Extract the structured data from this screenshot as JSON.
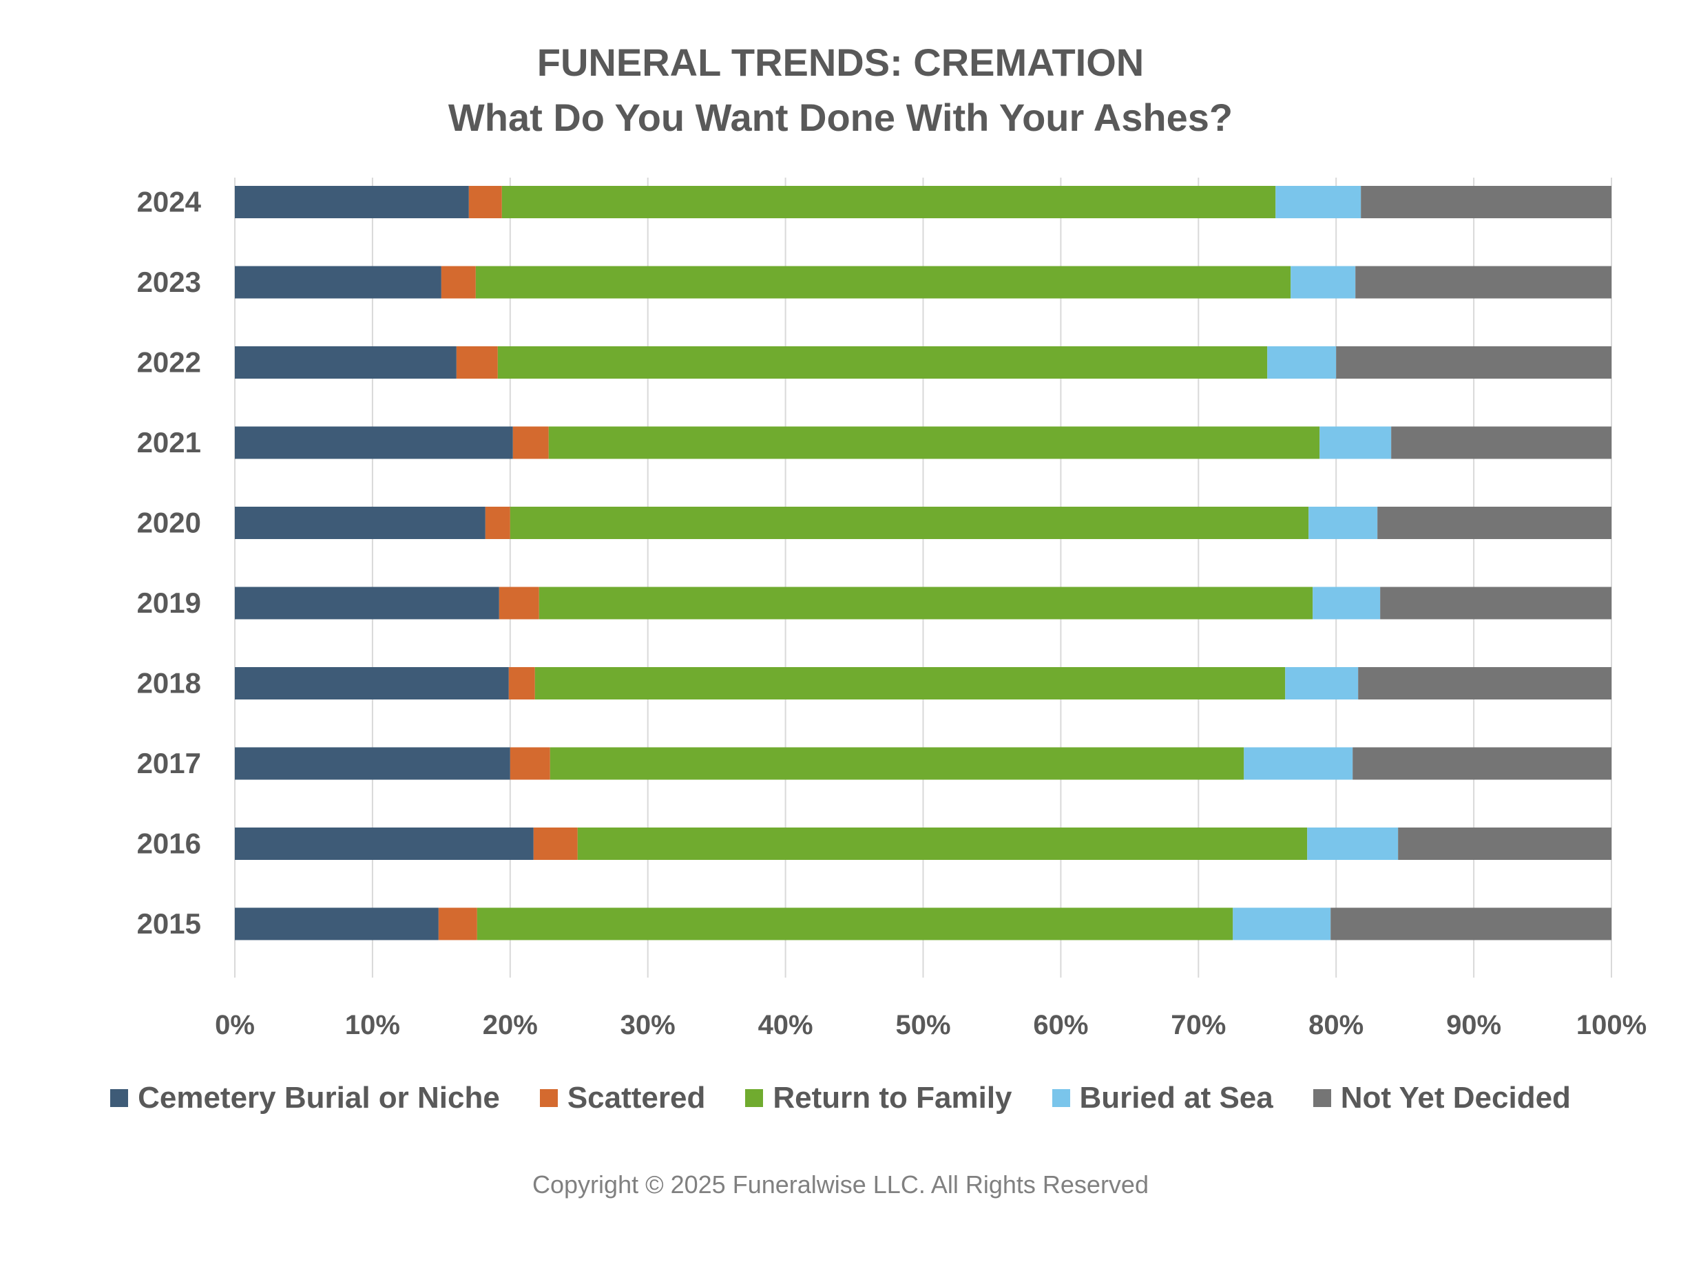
{
  "chart_data": {
    "type": "bar",
    "orientation": "horizontal",
    "stacked": "percent",
    "title": "FUNERAL TRENDS: CREMATION",
    "subtitle": "What Do You Want Done With Your Ashes?",
    "categories": [
      "2024",
      "2023",
      "2022",
      "2021",
      "2020",
      "2019",
      "2018",
      "2017",
      "2016",
      "2015"
    ],
    "series": [
      {
        "name": "Cemetery Burial or Niche",
        "color": "#3E5B77",
        "values": [
          17.0,
          15.0,
          16.1,
          20.2,
          18.2,
          19.2,
          19.9,
          20.0,
          21.7,
          14.8
        ]
      },
      {
        "name": "Scattered",
        "color": "#D46A2F",
        "values": [
          2.4,
          2.5,
          3.0,
          2.6,
          1.8,
          2.9,
          1.9,
          2.9,
          3.2,
          2.8
        ]
      },
      {
        "name": "Return to Family",
        "color": "#70AB2F",
        "values": [
          56.2,
          59.2,
          55.9,
          56.0,
          58.0,
          56.2,
          54.5,
          50.4,
          53.0,
          54.9
        ]
      },
      {
        "name": "Buried at Sea",
        "color": "#7AC5EB",
        "values": [
          6.2,
          4.7,
          5.0,
          5.2,
          5.0,
          4.9,
          5.3,
          7.9,
          6.6,
          7.1
        ]
      },
      {
        "name": "Not Yet Decided",
        "color": "#757575",
        "values": [
          18.2,
          18.6,
          20.0,
          16.0,
          17.0,
          16.8,
          18.4,
          18.8,
          15.5,
          20.4
        ]
      }
    ],
    "xlim": [
      0,
      100
    ],
    "x_ticks": [
      "0%",
      "10%",
      "20%",
      "30%",
      "40%",
      "50%",
      "60%",
      "70%",
      "80%",
      "90%",
      "100%"
    ],
    "grid": true,
    "legend_position": "bottom"
  },
  "footer": {
    "copyright": "Copyright © 2025 Funeralwise LLC. All Rights Reserved"
  }
}
